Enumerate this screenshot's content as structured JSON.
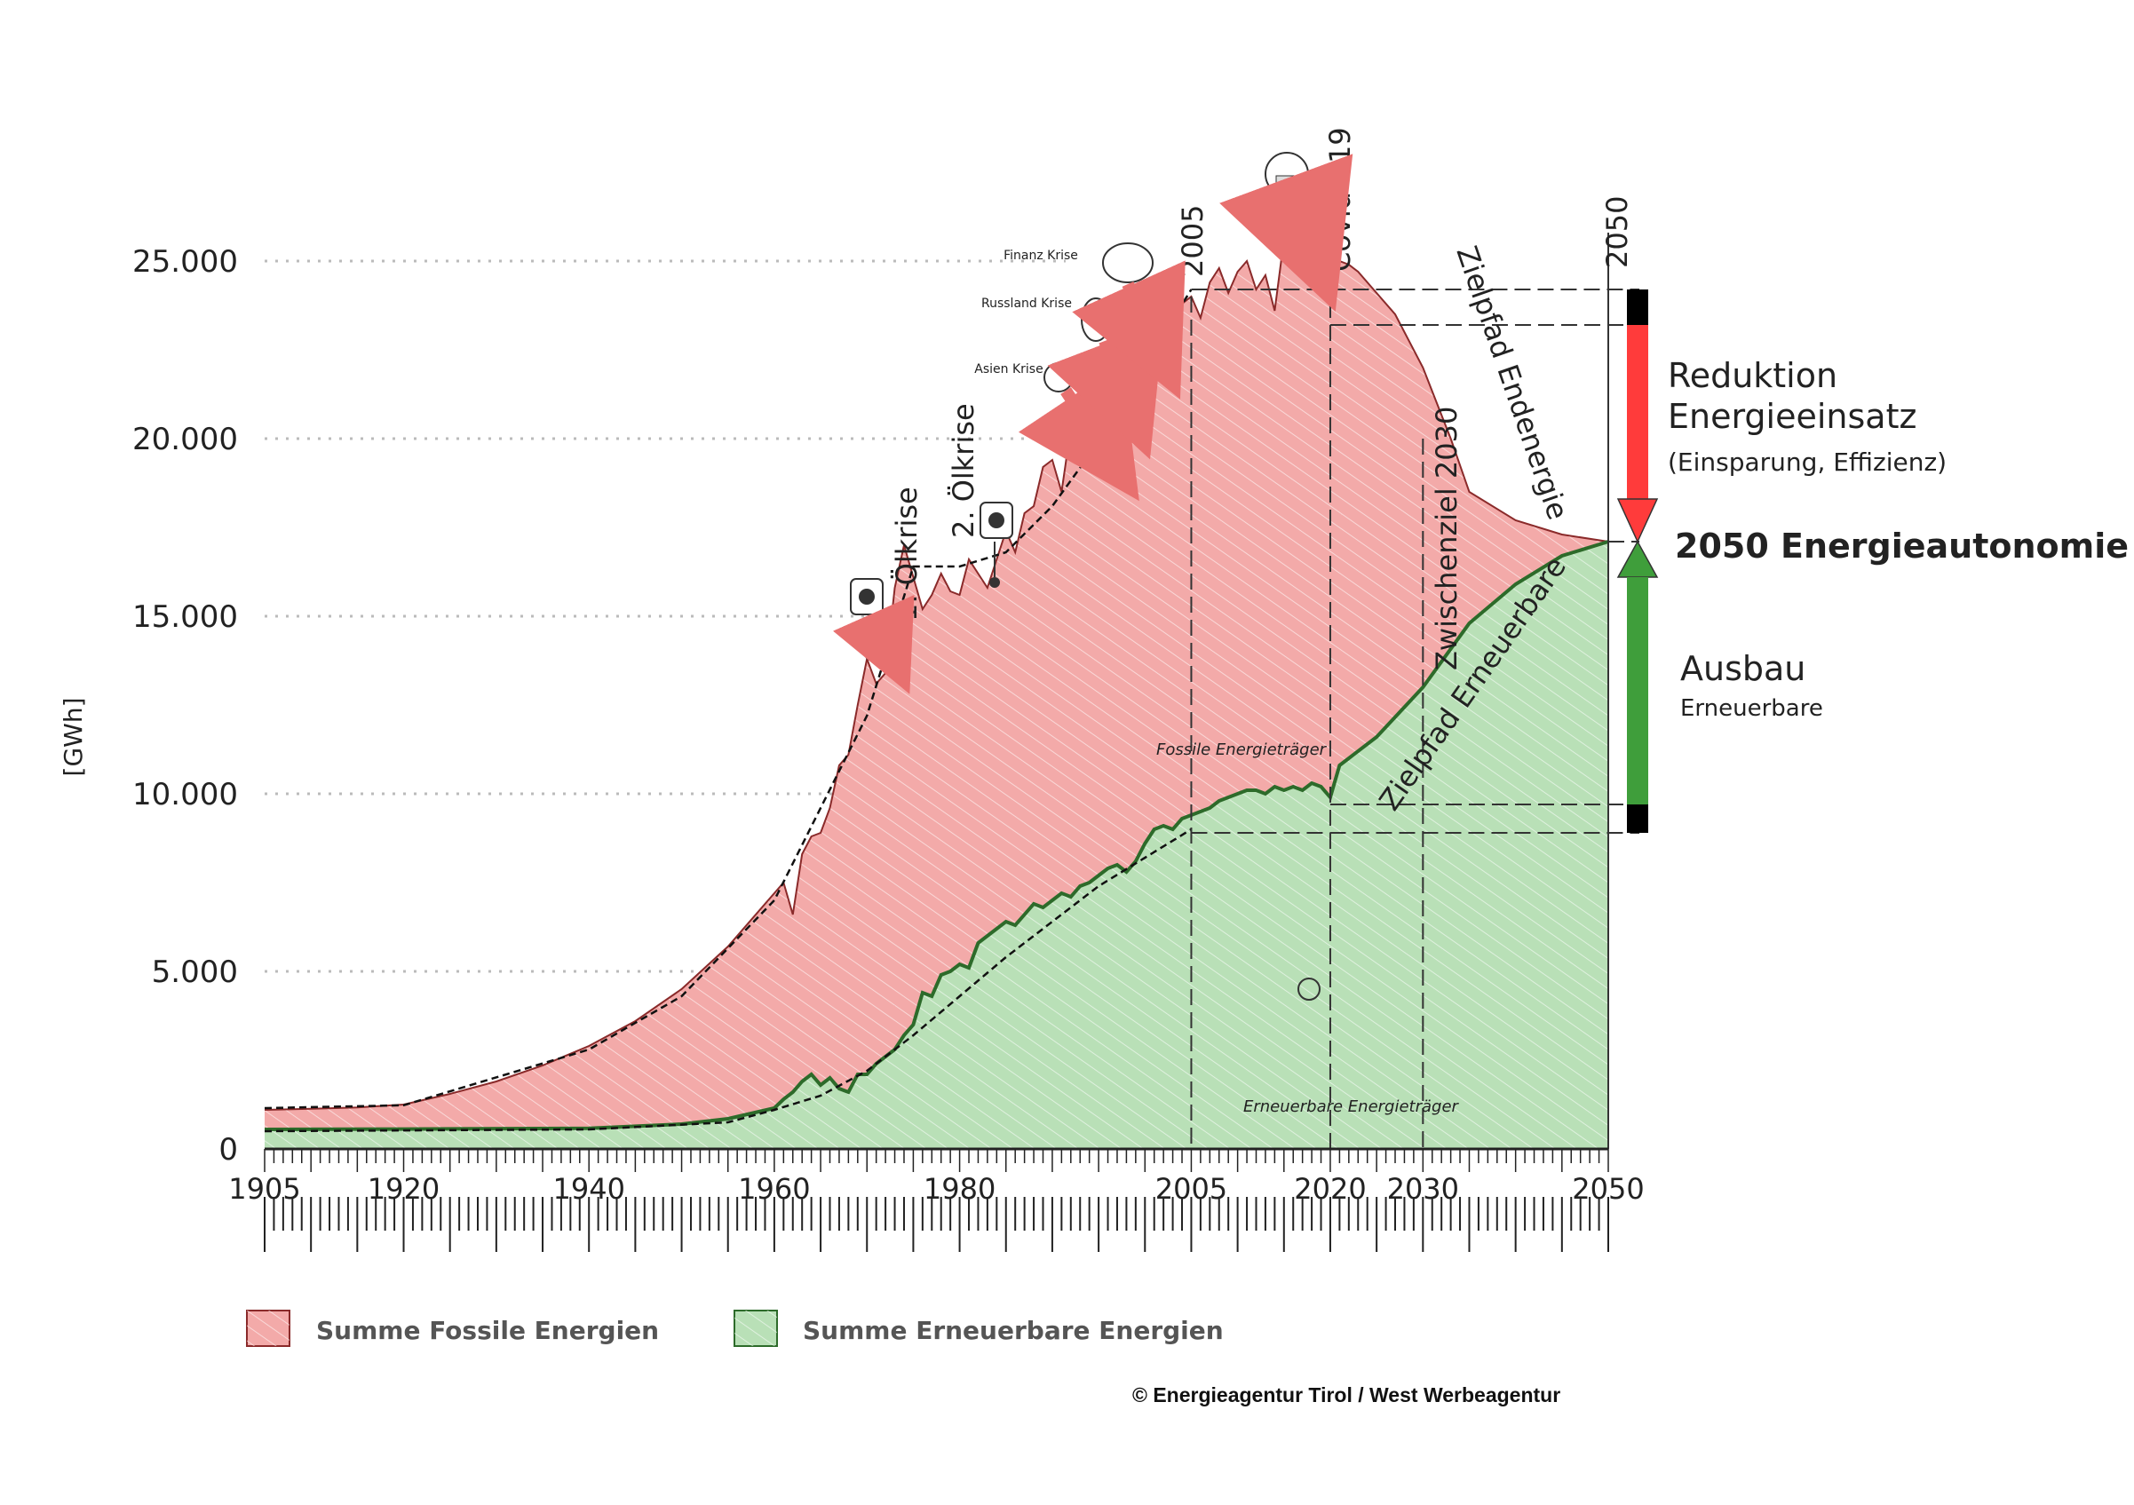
{
  "chart_data": {
    "type": "area",
    "ylabel": "[GWh]",
    "yticks": [
      "0",
      "5.000",
      "10.000",
      "15.000",
      "20.000",
      "25.000"
    ],
    "ytick_values": [
      0,
      5000,
      10000,
      15000,
      20000,
      25000
    ],
    "xticks": [
      "1905",
      "1920",
      "1940",
      "1960",
      "1980",
      "2005",
      "2020",
      "2030",
      "2050"
    ],
    "xtick_values": [
      1905,
      1920,
      1940,
      1960,
      1980,
      2005,
      2020,
      2030,
      2050
    ],
    "xlim": [
      1905,
      2050
    ],
    "ylim": [
      0,
      25000
    ],
    "series": [
      {
        "name": "Summe Fossile Energien",
        "color": "#f3aaa9",
        "stroke": "#8a2a2a",
        "x": [
          1905,
          1910,
          1915,
          1920,
          1925,
          1930,
          1935,
          1940,
          1945,
          1950,
          1955,
          1960,
          1961,
          1962,
          1963,
          1964,
          1965,
          1966,
          1967,
          1968,
          1969,
          1970,
          1971,
          1972,
          1973,
          1974,
          1975,
          1976,
          1977,
          1978,
          1979,
          1980,
          1981,
          1982,
          1983,
          1984,
          1985,
          1986,
          1987,
          1988,
          1989,
          1990,
          1991,
          1992,
          1993,
          1994,
          1995,
          1996,
          1997,
          1998,
          1999,
          2000,
          2001,
          2002,
          2003,
          2004,
          2005,
          2006,
          2007,
          2008,
          2009,
          2010,
          2011,
          2012,
          2013,
          2014,
          2015,
          2016,
          2017,
          2018,
          2019,
          2020,
          2021,
          2022,
          2023,
          2024,
          2025,
          2027,
          2030,
          2033,
          2035,
          2040,
          2045,
          2050
        ],
        "values": [
          1100,
          1130,
          1170,
          1250,
          1550,
          1900,
          2350,
          2900,
          3600,
          4500,
          5700,
          7200,
          7500,
          6600,
          8300,
          8800,
          8900,
          9600,
          10800,
          11100,
          12500,
          13800,
          13100,
          13400,
          15800,
          17000,
          16100,
          15200,
          15600,
          16200,
          15700,
          15600,
          16600,
          16200,
          15800,
          16600,
          17400,
          16800,
          17900,
          18100,
          19200,
          19400,
          18500,
          20300,
          20400,
          21500,
          22000,
          21200,
          22200,
          22600,
          22300,
          23800,
          24200,
          23900,
          24400,
          23800,
          24000,
          23400,
          24400,
          24800,
          24100,
          24700,
          25000,
          24200,
          24600,
          23600,
          25600,
          25700,
          25600,
          25700,
          25400,
          25100,
          25000,
          24900,
          24700,
          24400,
          24100,
          23500,
          22000,
          20000,
          18500,
          17700,
          17300,
          17100
        ]
      },
      {
        "name": "Summe Erneuerbare Energien",
        "color": "#b9e0b7",
        "stroke": "#2d6b2a",
        "x": [
          1905,
          1920,
          1940,
          1950,
          1955,
          1960,
          1961,
          1962,
          1963,
          1964,
          1965,
          1966,
          1967,
          1968,
          1969,
          1970,
          1971,
          1972,
          1973,
          1974,
          1975,
          1976,
          1977,
          1978,
          1979,
          1980,
          1981,
          1982,
          1983,
          1984,
          1985,
          1986,
          1987,
          1988,
          1989,
          1990,
          1991,
          1992,
          1993,
          1994,
          1995,
          1996,
          1997,
          1998,
          1999,
          2000,
          2001,
          2002,
          2003,
          2004,
          2005,
          2006,
          2007,
          2008,
          2009,
          2010,
          2011,
          2012,
          2013,
          2014,
          2015,
          2016,
          2017,
          2018,
          2019,
          2020,
          2021,
          2022,
          2025,
          2030,
          2035,
          2040,
          2045,
          2050
        ],
        "values": [
          550,
          560,
          580,
          700,
          850,
          1150,
          1400,
          1600,
          1900,
          2100,
          1800,
          2000,
          1700,
          1600,
          2100,
          2100,
          2400,
          2600,
          2800,
          3200,
          3500,
          4400,
          4300,
          4900,
          5000,
          5200,
          5100,
          5800,
          6000,
          6200,
          6400,
          6300,
          6600,
          6900,
          6800,
          7000,
          7200,
          7100,
          7400,
          7500,
          7700,
          7900,
          8000,
          7800,
          8100,
          8600,
          9000,
          9100,
          9000,
          9300,
          9400,
          9500,
          9600,
          9800,
          9900,
          10000,
          10100,
          10100,
          10000,
          10200,
          10100,
          10200,
          10100,
          10300,
          10200,
          9900,
          10800,
          11000,
          11600,
          13000,
          14800,
          15900,
          16700,
          17100
        ]
      }
    ],
    "dashed_trends": [
      {
        "x": [
          1905,
          1920,
          1940,
          1950,
          1960,
          1970,
          1975,
          1980,
          1985,
          1990,
          1995,
          2000,
          2005
        ],
        "values": [
          1150,
          1230,
          2800,
          4300,
          7000,
          12200,
          16400,
          16400,
          16800,
          18100,
          19900,
          22100,
          24200
        ]
      },
      {
        "x": [
          1905,
          1940,
          1955,
          1960,
          1965,
          1970,
          1975,
          1980,
          1985,
          1990,
          1995,
          2000,
          2005
        ],
        "values": [
          500,
          550,
          750,
          1100,
          1500,
          2200,
          3200,
          4300,
          5400,
          6400,
          7400,
          8200,
          9000
        ]
      }
    ],
    "event_labels": {
      "oil1": "1. Ölkrise",
      "oil2": "2. Ölkrise",
      "asien": "Asien Krise",
      "russland": "Russland Krise",
      "finanz": "Finanz Krise",
      "y2005": "2005",
      "covid": "Covid - 19",
      "y2050": "2050",
      "zielpfad_end": "Zielpfad Endenergie",
      "zwischenziel": "Zwischenziel 2030",
      "zielpfad_ern": "Zielpfad Erneuerbare",
      "fossile_label": "Fossile Energieträger",
      "erneuerbare_label": "Erneuerbare Energieträger"
    },
    "right_annotations": {
      "reduktion_1": "Reduktion",
      "reduktion_2": "Energieeinsatz",
      "reduktion_3": "(Einsparung, Effizienz)",
      "autonomie": "2050 Energieautonomie",
      "ausbau_1": "Ausbau",
      "ausbau_2": "Erneuerbare"
    },
    "legend": [
      {
        "label": "Summe Fossile Energien",
        "color": "#f3aaa9",
        "stroke": "#8a2a2a"
      },
      {
        "label": "Summe Erneuerbare Energien",
        "color": "#b9e0b7",
        "stroke": "#2d6b2a"
      }
    ],
    "colors": {
      "reduction_bar": "#ff3b3b",
      "ausbau_bar": "#3f9e3b",
      "autonomie_text": "#2f7d2c",
      "end_caps": "#000000"
    }
  },
  "copyright": "© Energieagentur Tirol / West Werbeagentur"
}
